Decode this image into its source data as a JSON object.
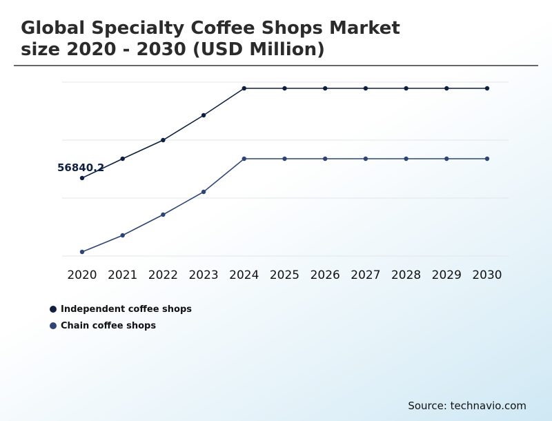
{
  "header": {
    "title_line1": "Global Specialty Coffee Shops Market",
    "title_line2": "size 2020 - 2030 (USD Million)"
  },
  "source": "Source: technavio.com",
  "colors": {
    "independent": "#0e1f40",
    "chain": "#2e4475",
    "grid": "#e2e6ea"
  },
  "chart_data": {
    "type": "line",
    "title": "Global Specialty Coffee Shops Market size 2020 - 2030 (USD Million)",
    "categories": [
      "2020",
      "2021",
      "2022",
      "2023",
      "2024",
      "2025",
      "2026",
      "2027",
      "2028",
      "2029",
      "2030"
    ],
    "ylim": [
      38000,
      80000
    ],
    "grid": true,
    "legend_position": "bottom-left",
    "series": [
      {
        "name": "Independent coffee shops",
        "values": [
          56840.2,
          61500,
          66000,
          72000,
          78500,
          78500,
          78500,
          78500,
          78500,
          78500,
          78500
        ]
      },
      {
        "name": "Chain coffee shops",
        "values": [
          39000,
          43000,
          48000,
          53500,
          61500,
          61500,
          61500,
          61500,
          61500,
          61500,
          61500
        ]
      }
    ],
    "annotations": [
      {
        "series": 0,
        "index": 0,
        "text": "56840.2"
      }
    ]
  }
}
